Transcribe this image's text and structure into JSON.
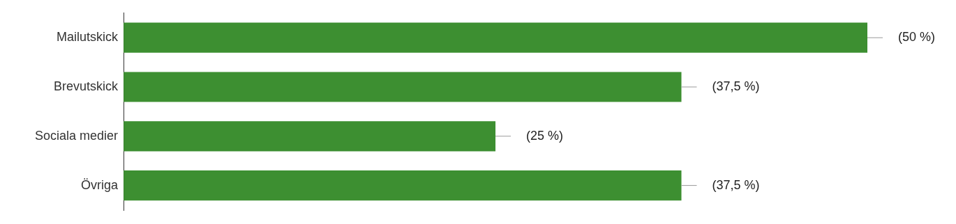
{
  "chart_data": {
    "type": "bar",
    "orientation": "horizontal",
    "categories": [
      "Mailutskick",
      "Brevutskick",
      "Sociala medier",
      "Övriga"
    ],
    "values": [
      50,
      37.5,
      25,
      37.5
    ],
    "value_labels": [
      "(50 %)",
      "(37,5 %)",
      "(25 %)",
      "(37,5 %)"
    ],
    "color": "#3d8f31"
  }
}
